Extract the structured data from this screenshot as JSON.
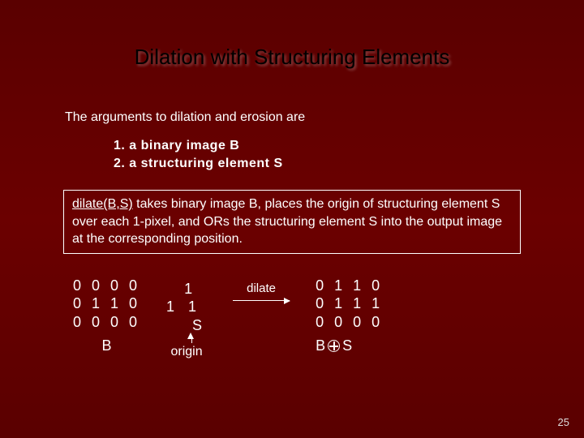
{
  "title": "Dilation with Structuring Elements",
  "intro": "The arguments to dilation and erosion are",
  "args": {
    "line1": "1.  a binary image B",
    "line2": "2.  a structuring element S"
  },
  "desc": {
    "lead": "dilate(B,S)",
    "rest": " takes binary image B, places the origin of structuring element S over each 1-pixel, and ORs the structuring element S into the output image at the corresponding position."
  },
  "matrixB": {
    "rows": [
      "0 0 0 0",
      "0 1 1 0",
      "0 0 0 0"
    ],
    "label": "B"
  },
  "structS": {
    "row1": "1",
    "row2": "1 1",
    "label": "S",
    "origin": "origin"
  },
  "dilate_label": "dilate",
  "matrixR": {
    "rows": [
      "0 1 1 0",
      "0 1 1 1",
      "0 0 0 0"
    ],
    "label_b": "B",
    "label_s": "S"
  },
  "pagenum": "25",
  "colors": {
    "bg_top": "#5a0000",
    "bg_mid": "#6b0000",
    "title": "#000000",
    "text": "#ffffff"
  }
}
